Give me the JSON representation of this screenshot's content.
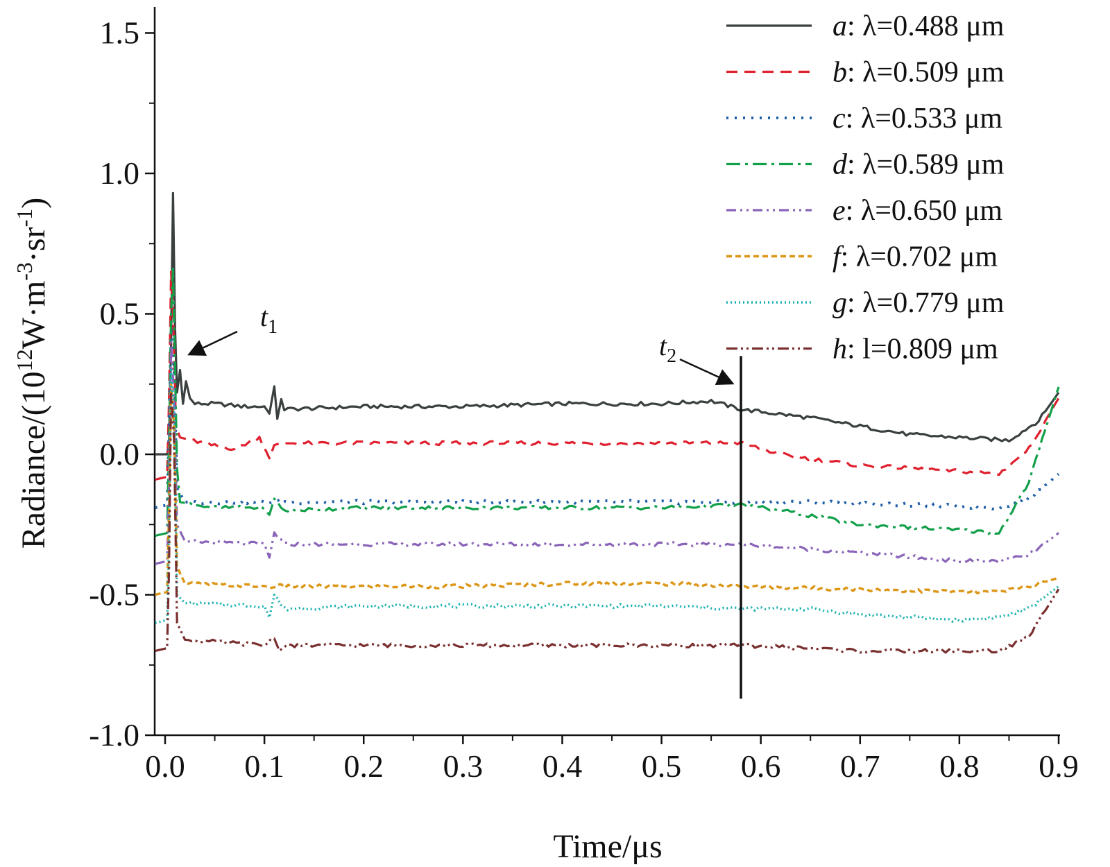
{
  "chart_data": {
    "type": "line",
    "xlabel": "Time/μs",
    "ylabel": {
      "prefix": "Radiance/(10",
      "sup1": "12",
      "mid1": "W·m",
      "sup2": "-3",
      "mid2": "·sr",
      "sup3": "-1",
      "suffix": ")"
    },
    "xlim": [
      -0.01,
      0.9
    ],
    "ylim": [
      -1.0,
      1.6
    ],
    "xticks": [
      "0.0",
      "0.1",
      "0.2",
      "0.3",
      "0.4",
      "0.5",
      "0.6",
      "0.7",
      "0.8",
      "0.9"
    ],
    "yticks": [
      "1.5",
      "1.0",
      "0.5",
      "0.0",
      "-0.5",
      "-1.0"
    ],
    "legend_position": "top-right",
    "series": [
      {
        "key": "a",
        "letter": "a",
        "label": ": λ=0.488 μm",
        "color": "#3a3f3f",
        "dash": "",
        "width": 3.2,
        "points": [
          [
            -0.01,
            0.0
          ],
          [
            0.002,
            0.0
          ],
          [
            0.004,
            0.04
          ],
          [
            0.006,
            0.4
          ],
          [
            0.008,
            0.93
          ],
          [
            0.01,
            0.45
          ],
          [
            0.012,
            0.22
          ],
          [
            0.015,
            0.3
          ],
          [
            0.018,
            0.18
          ],
          [
            0.021,
            0.26
          ],
          [
            0.025,
            0.2
          ],
          [
            0.03,
            0.18
          ],
          [
            0.05,
            0.18
          ],
          [
            0.08,
            0.17
          ],
          [
            0.1,
            0.17
          ],
          [
            0.105,
            0.15
          ],
          [
            0.11,
            0.24
          ],
          [
            0.113,
            0.12
          ],
          [
            0.117,
            0.2
          ],
          [
            0.12,
            0.16
          ],
          [
            0.2,
            0.17
          ],
          [
            0.3,
            0.17
          ],
          [
            0.4,
            0.18
          ],
          [
            0.5,
            0.18
          ],
          [
            0.55,
            0.19
          ],
          [
            0.58,
            0.16
          ],
          [
            0.65,
            0.13
          ],
          [
            0.7,
            0.1
          ],
          [
            0.75,
            0.07
          ],
          [
            0.8,
            0.06
          ],
          [
            0.85,
            0.05
          ],
          [
            0.88,
            0.12
          ],
          [
            0.9,
            0.22
          ]
        ]
      },
      {
        "key": "b",
        "letter": "b",
        "label": ": λ=0.509 μm",
        "color": "#e0202e",
        "dash": "16 10",
        "width": 3.2,
        "points": [
          [
            -0.01,
            -0.09
          ],
          [
            0.002,
            -0.08
          ],
          [
            0.004,
            0.2
          ],
          [
            0.006,
            0.65
          ],
          [
            0.008,
            0.5
          ],
          [
            0.011,
            0.1
          ],
          [
            0.015,
            0.06
          ],
          [
            0.05,
            0.03
          ],
          [
            0.07,
            0.02
          ],
          [
            0.095,
            0.06
          ],
          [
            0.105,
            -0.01
          ],
          [
            0.11,
            0.03
          ],
          [
            0.12,
            0.04
          ],
          [
            0.2,
            0.04
          ],
          [
            0.3,
            0.04
          ],
          [
            0.4,
            0.04
          ],
          [
            0.5,
            0.04
          ],
          [
            0.58,
            0.04
          ],
          [
            0.62,
            0.0
          ],
          [
            0.7,
            -0.04
          ],
          [
            0.8,
            -0.06
          ],
          [
            0.84,
            -0.07
          ],
          [
            0.87,
            0.02
          ],
          [
            0.9,
            0.2
          ]
        ]
      },
      {
        "key": "c",
        "letter": "c",
        "label": ": λ=0.533 μm",
        "color": "#1f5fa8",
        "dash": "3 9",
        "width": 4,
        "points": [
          [
            -0.01,
            -0.19
          ],
          [
            0.002,
            -0.18
          ],
          [
            0.004,
            0.1
          ],
          [
            0.006,
            0.45
          ],
          [
            0.009,
            0.3
          ],
          [
            0.012,
            -0.12
          ],
          [
            0.02,
            -0.17
          ],
          [
            0.1,
            -0.17
          ],
          [
            0.2,
            -0.17
          ],
          [
            0.3,
            -0.17
          ],
          [
            0.4,
            -0.17
          ],
          [
            0.5,
            -0.17
          ],
          [
            0.58,
            -0.17
          ],
          [
            0.65,
            -0.17
          ],
          [
            0.75,
            -0.18
          ],
          [
            0.84,
            -0.19
          ],
          [
            0.87,
            -0.16
          ],
          [
            0.9,
            -0.07
          ]
        ]
      },
      {
        "key": "d",
        "letter": "d",
        "label": ": λ=0.589 μm",
        "color": "#13a04a",
        "dash": "20 7 4 7",
        "width": 3.2,
        "points": [
          [
            -0.01,
            -0.29
          ],
          [
            0.002,
            -0.28
          ],
          [
            0.004,
            0.05
          ],
          [
            0.006,
            0.5
          ],
          [
            0.008,
            0.66
          ],
          [
            0.01,
            0.3
          ],
          [
            0.012,
            -0.05
          ],
          [
            0.015,
            -0.17
          ],
          [
            0.05,
            -0.19
          ],
          [
            0.1,
            -0.19
          ],
          [
            0.105,
            -0.22
          ],
          [
            0.11,
            -0.16
          ],
          [
            0.12,
            -0.2
          ],
          [
            0.2,
            -0.19
          ],
          [
            0.3,
            -0.19
          ],
          [
            0.4,
            -0.19
          ],
          [
            0.5,
            -0.19
          ],
          [
            0.58,
            -0.18
          ],
          [
            0.62,
            -0.2
          ],
          [
            0.7,
            -0.25
          ],
          [
            0.8,
            -0.27
          ],
          [
            0.84,
            -0.28
          ],
          [
            0.87,
            -0.1
          ],
          [
            0.9,
            0.24
          ]
        ]
      },
      {
        "key": "e",
        "letter": "e",
        "label": ": λ=0.650 μm",
        "color": "#8a64b8",
        "dash": "14 6 3 6 3 6",
        "width": 3.2,
        "points": [
          [
            -0.01,
            -0.39
          ],
          [
            0.002,
            -0.38
          ],
          [
            0.004,
            -0.1
          ],
          [
            0.006,
            0.4
          ],
          [
            0.009,
            0.2
          ],
          [
            0.012,
            -0.25
          ],
          [
            0.02,
            -0.31
          ],
          [
            0.1,
            -0.32
          ],
          [
            0.105,
            -0.37
          ],
          [
            0.11,
            -0.28
          ],
          [
            0.12,
            -0.32
          ],
          [
            0.2,
            -0.32
          ],
          [
            0.3,
            -0.32
          ],
          [
            0.4,
            -0.32
          ],
          [
            0.5,
            -0.32
          ],
          [
            0.58,
            -0.32
          ],
          [
            0.7,
            -0.35
          ],
          [
            0.8,
            -0.38
          ],
          [
            0.84,
            -0.38
          ],
          [
            0.87,
            -0.36
          ],
          [
            0.9,
            -0.28
          ]
        ]
      },
      {
        "key": "f",
        "letter": "f",
        "label": ": λ=0.702 μm",
        "color": "#dc9616",
        "dash": "8 5",
        "width": 3.4,
        "points": [
          [
            -0.01,
            -0.5
          ],
          [
            0.002,
            -0.49
          ],
          [
            0.004,
            -0.2
          ],
          [
            0.006,
            0.25
          ],
          [
            0.009,
            0.1
          ],
          [
            0.012,
            -0.4
          ],
          [
            0.02,
            -0.46
          ],
          [
            0.1,
            -0.47
          ],
          [
            0.2,
            -0.47
          ],
          [
            0.3,
            -0.47
          ],
          [
            0.4,
            -0.46
          ],
          [
            0.5,
            -0.46
          ],
          [
            0.58,
            -0.47
          ],
          [
            0.7,
            -0.48
          ],
          [
            0.8,
            -0.49
          ],
          [
            0.84,
            -0.49
          ],
          [
            0.87,
            -0.47
          ],
          [
            0.9,
            -0.44
          ]
        ]
      },
      {
        "key": "g",
        "letter": "g",
        "label": ": λ=0.779 μm",
        "color": "#1ab0b0",
        "dash": "2 4",
        "width": 3.4,
        "points": [
          [
            -0.01,
            -0.6
          ],
          [
            0.002,
            -0.59
          ],
          [
            0.004,
            -0.3
          ],
          [
            0.006,
            0.3
          ],
          [
            0.009,
            0.15
          ],
          [
            0.012,
            -0.5
          ],
          [
            0.02,
            -0.53
          ],
          [
            0.1,
            -0.54
          ],
          [
            0.105,
            -0.58
          ],
          [
            0.11,
            -0.5
          ],
          [
            0.12,
            -0.55
          ],
          [
            0.2,
            -0.54
          ],
          [
            0.3,
            -0.54
          ],
          [
            0.4,
            -0.54
          ],
          [
            0.5,
            -0.54
          ],
          [
            0.58,
            -0.55
          ],
          [
            0.65,
            -0.55
          ],
          [
            0.7,
            -0.57
          ],
          [
            0.8,
            -0.59
          ],
          [
            0.84,
            -0.58
          ],
          [
            0.87,
            -0.55
          ],
          [
            0.9,
            -0.47
          ]
        ]
      },
      {
        "key": "h",
        "letter": "h",
        "label": ": l=0.809 μm",
        "color": "#7a2f2f",
        "dash": "16 5 3 5 3 5",
        "width": 3.2,
        "points": [
          [
            -0.01,
            -0.7
          ],
          [
            0.002,
            -0.69
          ],
          [
            0.004,
            -0.4
          ],
          [
            0.006,
            0.22
          ],
          [
            0.009,
            0.05
          ],
          [
            0.012,
            -0.6
          ],
          [
            0.02,
            -0.66
          ],
          [
            0.1,
            -0.68
          ],
          [
            0.11,
            -0.65
          ],
          [
            0.115,
            -0.7
          ],
          [
            0.12,
            -0.68
          ],
          [
            0.2,
            -0.68
          ],
          [
            0.3,
            -0.68
          ],
          [
            0.4,
            -0.68
          ],
          [
            0.5,
            -0.68
          ],
          [
            0.58,
            -0.68
          ],
          [
            0.65,
            -0.69
          ],
          [
            0.7,
            -0.7
          ],
          [
            0.8,
            -0.7
          ],
          [
            0.84,
            -0.7
          ],
          [
            0.87,
            -0.65
          ],
          [
            0.9,
            -0.48
          ]
        ]
      }
    ],
    "annotations": [
      {
        "key": "t1",
        "text": "t",
        "sub": "1",
        "x": 0.013,
        "y": 0.37
      },
      {
        "key": "t2",
        "text": "t",
        "sub": "2",
        "x": 0.57,
        "y": 0.25,
        "vline": {
          "x": 0.58,
          "y0": -0.87,
          "y1": 0.35
        }
      }
    ]
  }
}
